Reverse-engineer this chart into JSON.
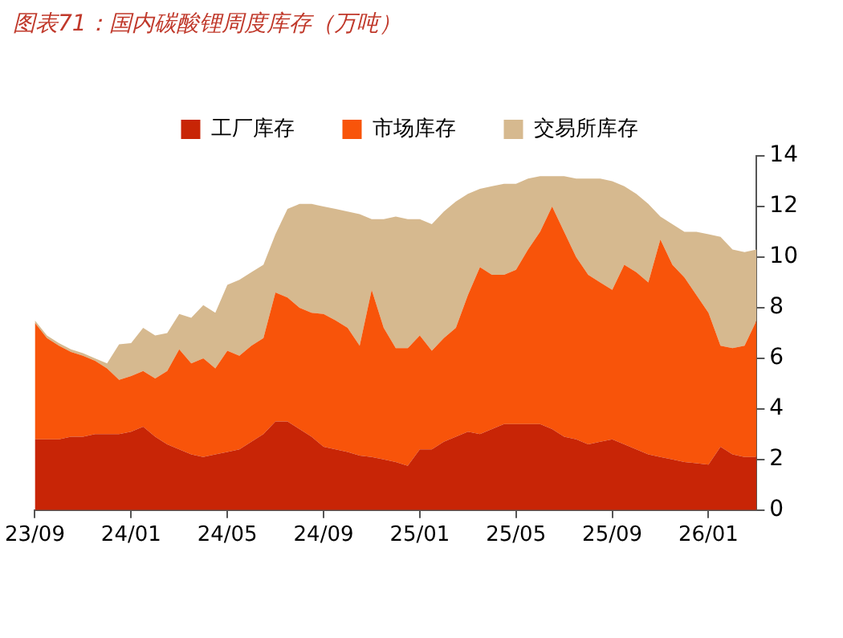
{
  "chart_data": {
    "type": "area",
    "title": "图表71：国内碳酸锂周度库存（万吨）",
    "stacked": true,
    "legend": "top",
    "grid": false,
    "categories": [
      "23/09",
      null,
      null,
      null,
      null,
      null,
      null,
      null,
      "24/01",
      null,
      null,
      null,
      null,
      null,
      null,
      null,
      "24/05",
      null,
      null,
      null,
      null,
      null,
      null,
      null,
      "24/09",
      null,
      null,
      null,
      null,
      null,
      null,
      null,
      "25/01",
      null,
      null,
      null,
      null,
      null,
      null,
      null,
      "25/05",
      null,
      null,
      null,
      null,
      null,
      null,
      null,
      "25/09",
      null,
      null,
      null,
      null,
      null,
      null,
      null,
      "26/01",
      null,
      null,
      null,
      null
    ],
    "ylim": [
      0,
      14
    ],
    "yticks": [
      0,
      2,
      4,
      6,
      8,
      10,
      12,
      14
    ],
    "series": [
      {
        "name": "工厂库存",
        "color": "#c82506",
        "values": [
          2.8,
          2.8,
          2.8,
          2.9,
          2.9,
          3.0,
          3.0,
          3.0,
          3.1,
          3.3,
          2.9,
          2.6,
          2.4,
          2.2,
          2.1,
          2.2,
          2.3,
          2.4,
          2.7,
          3.0,
          3.5,
          3.5,
          3.2,
          2.9,
          2.5,
          2.4,
          2.3,
          2.15,
          2.1,
          2.0,
          1.9,
          1.75,
          2.4,
          2.4,
          2.7,
          2.9,
          3.1,
          3.0,
          3.2,
          3.4,
          3.4,
          3.4,
          3.4,
          3.2,
          2.9,
          2.8,
          2.6,
          2.7,
          2.8,
          2.6,
          2.4,
          2.2,
          2.1,
          2.0,
          1.9,
          1.85,
          1.8,
          2.5,
          2.2,
          2.1,
          2.1
        ]
      },
      {
        "name": "市场库存",
        "color": "#f8540a",
        "values": [
          4.6,
          4.0,
          3.7,
          3.35,
          3.2,
          2.9,
          2.6,
          2.15,
          2.2,
          2.2,
          2.3,
          2.9,
          3.95,
          3.6,
          3.9,
          3.4,
          4.0,
          3.7,
          3.8,
          3.8,
          5.1,
          4.9,
          4.8,
          4.9,
          5.25,
          5.1,
          4.9,
          4.35,
          6.6,
          5.2,
          4.5,
          4.65,
          4.5,
          3.9,
          4.1,
          4.3,
          5.4,
          6.6,
          6.1,
          5.9,
          6.1,
          6.9,
          7.6,
          8.8,
          8.1,
          7.2,
          6.7,
          6.3,
          5.9,
          7.1,
          7.0,
          6.8,
          8.6,
          7.7,
          7.3,
          6.65,
          6.0,
          4.0,
          4.2,
          4.4,
          5.4
        ]
      },
      {
        "name": "交易所库存",
        "color": "#d6b98f",
        "values": [
          0.1,
          0.1,
          0.1,
          0.1,
          0.1,
          0.1,
          0.2,
          1.4,
          1.3,
          1.7,
          1.7,
          1.5,
          1.4,
          1.8,
          2.1,
          2.2,
          2.6,
          3.0,
          2.9,
          2.9,
          2.3,
          3.5,
          4.1,
          4.3,
          4.25,
          4.4,
          4.6,
          5.2,
          2.8,
          4.3,
          5.2,
          5.1,
          4.6,
          5.0,
          5.0,
          5.0,
          4.0,
          3.1,
          3.5,
          3.6,
          3.4,
          2.8,
          2.2,
          1.2,
          2.2,
          3.1,
          3.8,
          4.1,
          4.3,
          3.1,
          3.1,
          3.1,
          0.9,
          1.6,
          1.8,
          2.5,
          3.1,
          4.3,
          3.9,
          3.7,
          2.8
        ]
      }
    ]
  }
}
